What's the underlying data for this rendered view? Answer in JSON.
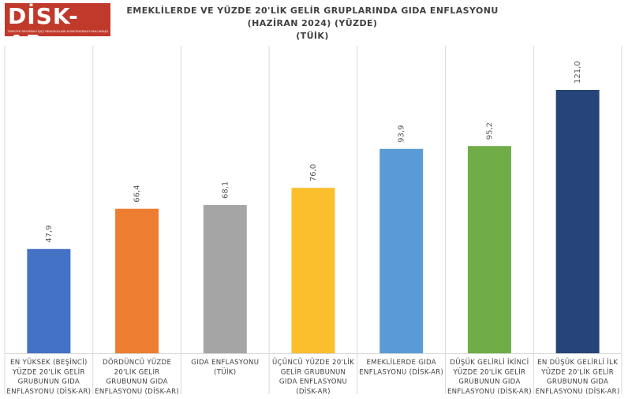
{
  "logo": {
    "text": "DİSK-AR",
    "subtitle": "TÜRKİYE DEVRİMCİ İŞÇİ SENDİKALARI KONFEDERASYONU ARAŞTIRMA MERKEZİ"
  },
  "chart_data": {
    "type": "bar",
    "title": [
      "EMEKLİLERDE VE YÜZDE 20'LİK GELİR GRUPLARINDA GIDA ENFLASYONU",
      "(HAZİRAN 2024) (YÜZDE)",
      "(TÜİK)"
    ],
    "categories": [
      [
        "EN YÜKSEK (BEŞİNCİ)",
        "YÜZDE 20'LİK GELİR",
        "GRUBUNUN GIDA",
        "ENFLASYONU (DİSK-AR)"
      ],
      [
        "DÖRDÜNCÜ YÜZDE",
        "20'LİK GELİR",
        "GRUBUNUN GIDA",
        "ENFLASYONU (DİSK-AR)"
      ],
      [
        "GIDA ENFLASYONU",
        "(TÜİK)"
      ],
      [
        "ÜÇÜNCÜ YÜZDE 20'LİK",
        "GELİR GRUBUNUN",
        "GIDA ENFLASYONU",
        "(DİSK-AR)"
      ],
      [
        "EMEKLİLERDE GIDA",
        "ENFLASYONU (DİSK-AR)"
      ],
      [
        "DÜŞÜK GELİRLİ İKİNCİ",
        "YÜZDE 20'LİK GELİR",
        "GRUBUNUN GIDA",
        "ENFLASYONU (DİSK-AR)"
      ],
      [
        "EN DÜŞÜK GELİRLİ İLK",
        "YÜZDE 20'LİK GELİR",
        "GRUBUNUN GIDA",
        "ENFLASYONU (DİSK-AR)"
      ]
    ],
    "values": [
      47.9,
      66.4,
      68.1,
      76.0,
      93.9,
      95.2,
      121.0
    ],
    "value_labels": [
      "47,9",
      "66,4",
      "68,1",
      "76,0",
      "93,9",
      "95,2",
      "121,0"
    ],
    "colors": [
      "#4472c4",
      "#ed7d31",
      "#a5a5a5",
      "#fbbf2d",
      "#5b9bd5",
      "#70ad47",
      "#264478"
    ],
    "ylim": [
      0,
      121.0
    ],
    "grid": "vertical category separators",
    "legend": "none"
  }
}
